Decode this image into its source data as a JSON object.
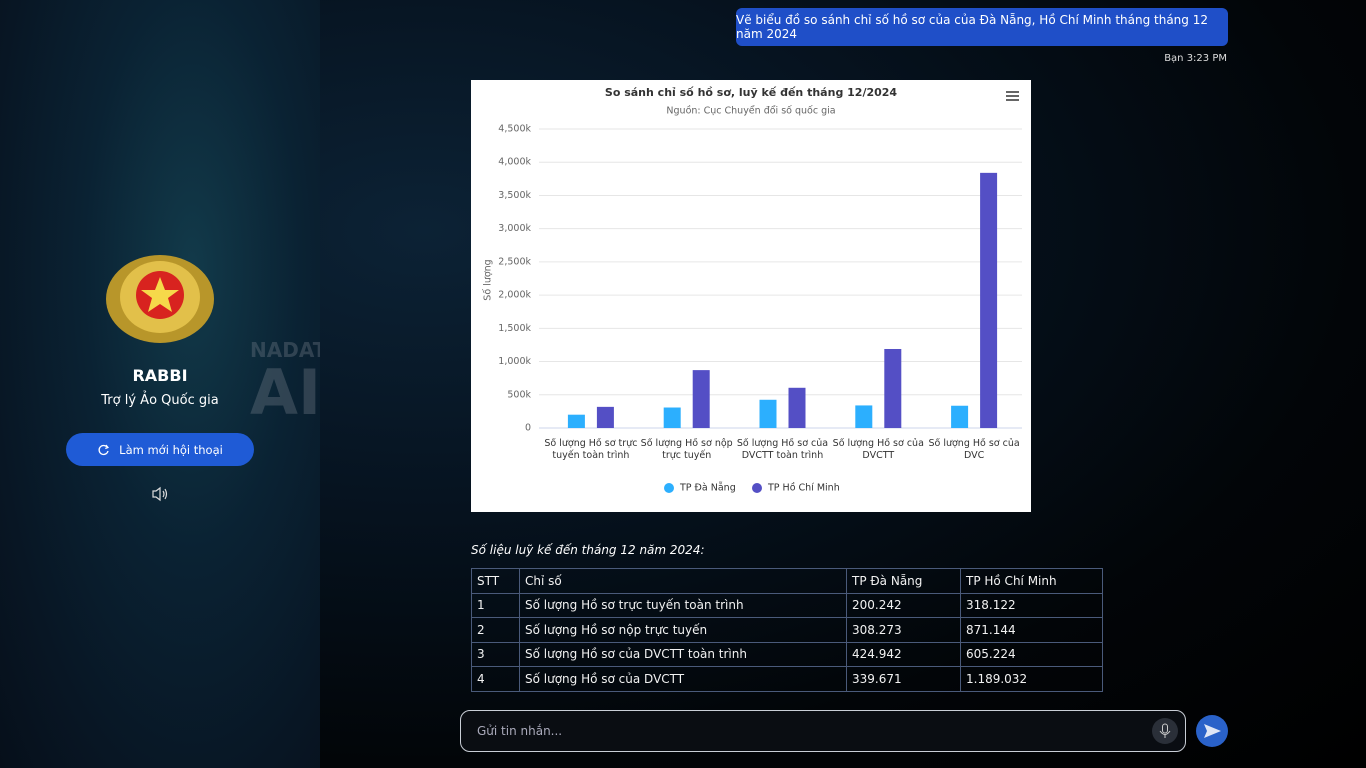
{
  "sidebar": {
    "bot_name": "RABBI",
    "bot_subtitle": "Trợ lý Ảo Quốc gia",
    "refresh_button": "Làm mới hội thoại",
    "background_text": [
      "NADAT",
      "AI"
    ]
  },
  "messages": [
    {
      "text": "Vẽ biểu đồ so sánh chỉ số hồ sơ của của Đà Nẵng, Hồ Chí Minh tháng tháng 12 năm 2024",
      "meta": "Bạn 3:23 PM"
    }
  ],
  "chart_data": {
    "type": "bar",
    "title": "So sánh chỉ số hồ sơ, luỹ kế đến tháng 12/2024",
    "subtitle": "Nguồn: Cục Chuyển đổi số quốc gia",
    "y_label": "Số lượng",
    "categories": [
      "Số lượng Hồ sơ trực tuyến toàn trình",
      "Số lượng Hồ sơ nộp trực tuyến",
      "Số lượng Hồ sơ của DVCTT toàn trình",
      "Số lượng Hồ sơ của DVCTT",
      "Số lượng Hồ sơ của DVC"
    ],
    "series": [
      {
        "name": "TP Đà Nẵng",
        "color": "#2caffe",
        "values": [
          200242,
          308273,
          424942,
          339671,
          335000
        ]
      },
      {
        "name": "TP Hồ Chí Minh",
        "color": "#544fc5",
        "values": [
          318122,
          871144,
          605224,
          1189032,
          3840000
        ]
      }
    ],
    "ylim": [
      0,
      4500000
    ],
    "yticks": [
      0,
      {
        "value": 500000,
        "label": "500k"
      },
      {
        "value": 1000000,
        "label": "1,000k"
      },
      {
        "value": 1500000,
        "label": "1,500k"
      },
      {
        "value": 2000000,
        "label": "2,000k"
      },
      {
        "value": 2500000,
        "label": "2,500k"
      },
      {
        "value": 3000000,
        "label": "3,000k"
      },
      {
        "value": 3500000,
        "label": "3,500k"
      },
      {
        "value": 4000000,
        "label": "4,000k"
      },
      {
        "value": 4500000,
        "label": "4,500k"
      }
    ],
    "grid": true,
    "legend": "bottom"
  },
  "table_caption": "Số liệu luỹ kế đến tháng 12 năm 2024:",
  "table": {
    "header": [
      "STT",
      "Chỉ số",
      "TP Đà Nẵng",
      "TP Hồ Chí Minh"
    ],
    "rows": [
      [
        "1",
        "Số lượng Hồ sơ trực tuyến toàn trình",
        "200.242",
        "318.122"
      ],
      [
        "2",
        "Số lượng Hồ sơ nộp trực tuyến",
        "308.273",
        "871.144"
      ],
      [
        "3",
        "Số lượng Hồ sơ của DVCTT toàn trình",
        "424.942",
        "605.224"
      ],
      [
        "4",
        "Số lượng Hồ sơ của DVCTT",
        "339.671",
        "1.189.032"
      ]
    ]
  },
  "input": {
    "placeholder": "Gửi tin nhắn..."
  }
}
